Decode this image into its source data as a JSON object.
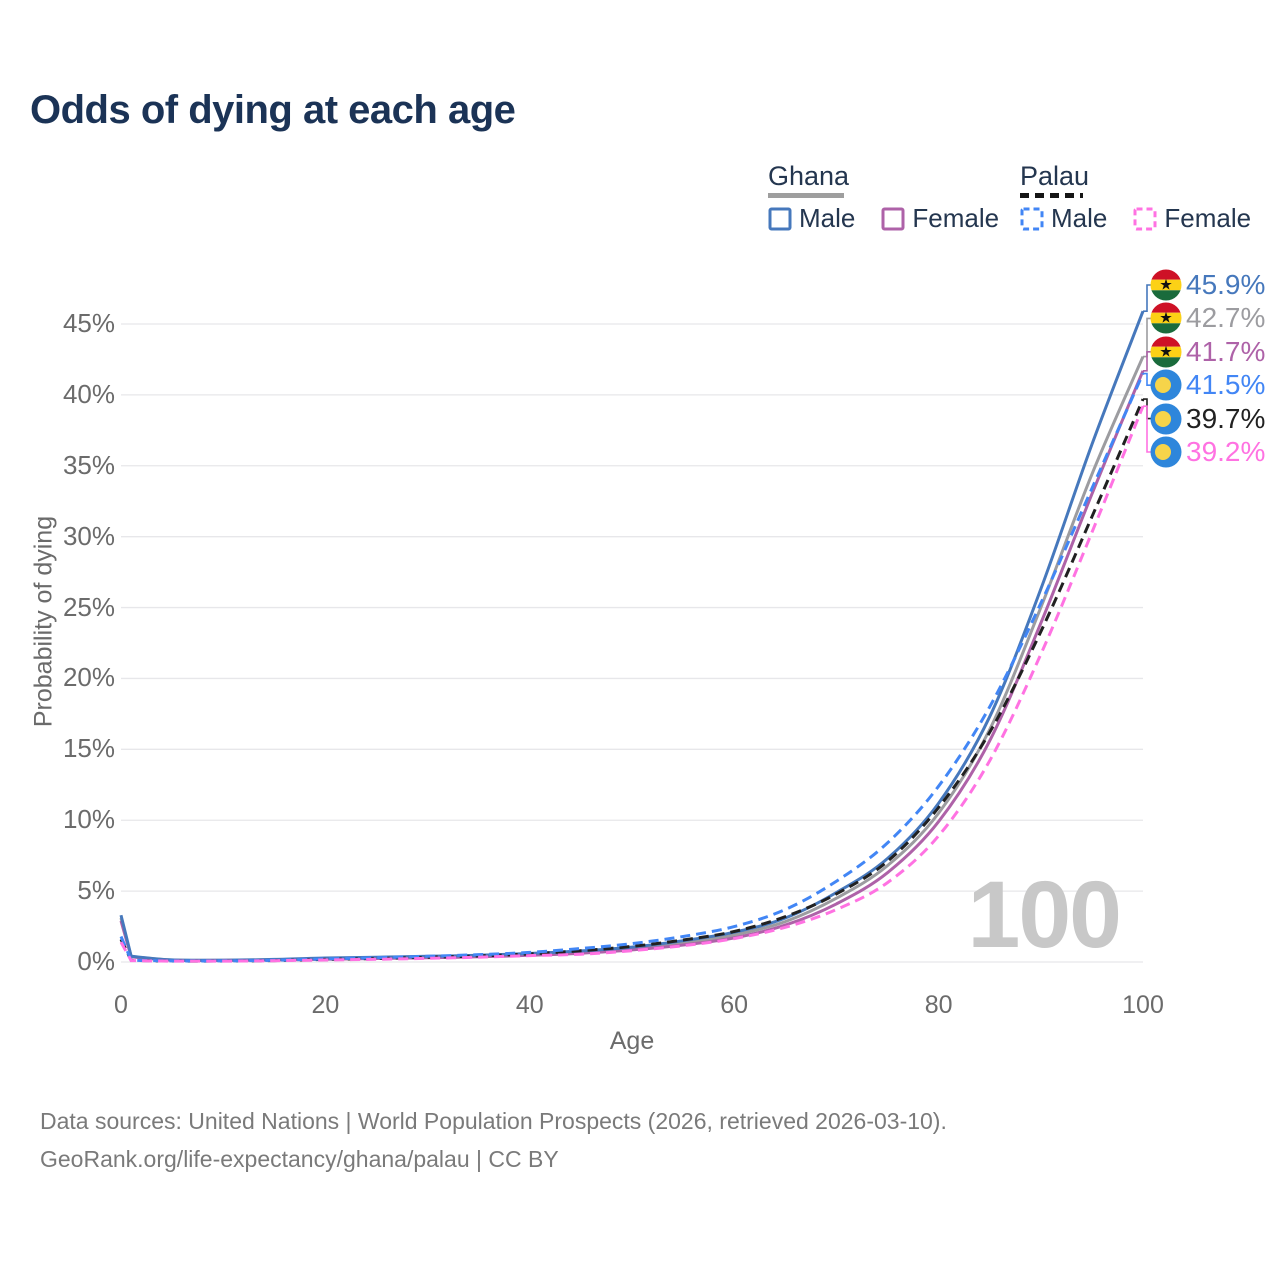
{
  "title": "Odds of dying at each age",
  "watermark": "100",
  "colors": {
    "title": "#1B3356",
    "axis_text": "#6B6B6B",
    "gridline": "#E7E7EA",
    "legend_text": "#24364F",
    "watermark": "#C8C8C8",
    "footer_text": "#7A7A7A",
    "ghana_underline": "#9E9E9E",
    "palau_underline": "#151515",
    "flag_ghana_red": "#CE1126",
    "flag_ghana_gold": "#FCD116",
    "flag_ghana_green": "#1A6B3C",
    "flag_ghana_star": "#111111",
    "flag_palau_blue": "#2E86DB",
    "flag_palau_moon": "#F6D44A"
  },
  "legend": {
    "groups": [
      {
        "label": "Ghana",
        "line_style": "solid",
        "underline_color": "#9E9E9E",
        "items": [
          {
            "label": "Male",
            "color": "#4678BC"
          },
          {
            "label": "Female",
            "color": "#AE62A8"
          }
        ]
      },
      {
        "label": "Palau",
        "line_style": "dashed",
        "underline_color": "#151515",
        "items": [
          {
            "label": "Male",
            "color": "#4286F5"
          },
          {
            "label": "Female",
            "color": "#FF72E2"
          }
        ]
      }
    ]
  },
  "chart_data": {
    "type": "line",
    "title": "Odds of dying at each age",
    "xlabel": "Age",
    "ylabel": "Probability of dying",
    "x_ticks": [
      0,
      20,
      40,
      60,
      80,
      100
    ],
    "y_ticks": [
      0,
      5,
      10,
      15,
      20,
      25,
      30,
      35,
      40,
      45
    ],
    "y_tick_suffix": "%",
    "xlim": [
      0,
      100
    ],
    "ylim": [
      0,
      46
    ],
    "grid": "horizontal",
    "legend_position": "top-right",
    "x": [
      0,
      1,
      5,
      10,
      15,
      20,
      25,
      30,
      35,
      40,
      45,
      50,
      55,
      60,
      65,
      70,
      75,
      80,
      85,
      90,
      95,
      100
    ],
    "z_order": [
      1,
      2,
      0,
      4,
      3,
      5
    ],
    "series": [
      {
        "id": "ghana-male",
        "name": "Ghana Male",
        "country": "Ghana",
        "sex": "Male",
        "line_style": "solid",
        "color": "#4678BC",
        "end_label": "45.9%",
        "values": [
          3.3,
          0.4,
          0.15,
          0.13,
          0.18,
          0.28,
          0.34,
          0.4,
          0.48,
          0.6,
          0.78,
          1.05,
          1.5,
          2.1,
          3.1,
          4.9,
          7.3,
          11.2,
          17.3,
          26.3,
          36.5,
          45.9
        ]
      },
      {
        "id": "ghana-total",
        "name": "Ghana",
        "country": "Ghana",
        "sex": "Both",
        "line_style": "solid",
        "color": "#9C9CA0",
        "end_label": "42.7%",
        "values": [
          3.1,
          0.38,
          0.14,
          0.12,
          0.16,
          0.24,
          0.29,
          0.35,
          0.42,
          0.53,
          0.7,
          0.95,
          1.35,
          1.9,
          2.85,
          4.5,
          6.8,
          10.5,
          16.4,
          25.0,
          34.4,
          42.7
        ]
      },
      {
        "id": "ghana-female",
        "name": "Ghana Female",
        "country": "Ghana",
        "sex": "Female",
        "line_style": "solid",
        "color": "#AE62A8",
        "end_label": "41.7%",
        "values": [
          2.9,
          0.36,
          0.13,
          0.11,
          0.14,
          0.2,
          0.25,
          0.3,
          0.37,
          0.47,
          0.62,
          0.85,
          1.2,
          1.7,
          2.6,
          4.1,
          6.3,
          9.9,
          15.6,
          23.9,
          33.0,
          41.7
        ]
      },
      {
        "id": "palau-male",
        "name": "Palau Male",
        "country": "Palau",
        "sex": "Male",
        "line_style": "dashed",
        "color": "#4286F5",
        "end_label": "41.5%",
        "values": [
          1.8,
          0.12,
          0.08,
          0.08,
          0.12,
          0.22,
          0.3,
          0.4,
          0.52,
          0.68,
          0.95,
          1.3,
          1.8,
          2.5,
          3.7,
          5.7,
          8.4,
          12.4,
          18.0,
          25.3,
          33.4,
          41.5
        ]
      },
      {
        "id": "palau-total",
        "name": "Palau",
        "country": "Palau",
        "sex": "Both",
        "line_style": "dashed",
        "color": "#212121",
        "end_label": "39.7%",
        "values": [
          1.6,
          0.11,
          0.07,
          0.07,
          0.1,
          0.18,
          0.25,
          0.33,
          0.43,
          0.57,
          0.8,
          1.1,
          1.55,
          2.15,
          3.2,
          4.8,
          7.1,
          10.9,
          16.2,
          23.3,
          31.4,
          39.7
        ]
      },
      {
        "id": "palau-female",
        "name": "Palau Female",
        "country": "Palau",
        "sex": "Female",
        "line_style": "dashed",
        "color": "#FF72E2",
        "end_label": "39.2%",
        "values": [
          1.4,
          0.1,
          0.06,
          0.06,
          0.09,
          0.14,
          0.19,
          0.26,
          0.34,
          0.45,
          0.55,
          0.8,
          1.15,
          1.65,
          2.45,
          3.7,
          5.6,
          8.9,
          14.2,
          21.7,
          30.3,
          39.2
        ]
      }
    ]
  },
  "footer": {
    "line1": "Data sources: United Nations | World Population Prospects (2026, retrieved 2026-03-10).",
    "line2": "GeoRank.org/life-expectancy/ghana/palau | CC BY"
  }
}
